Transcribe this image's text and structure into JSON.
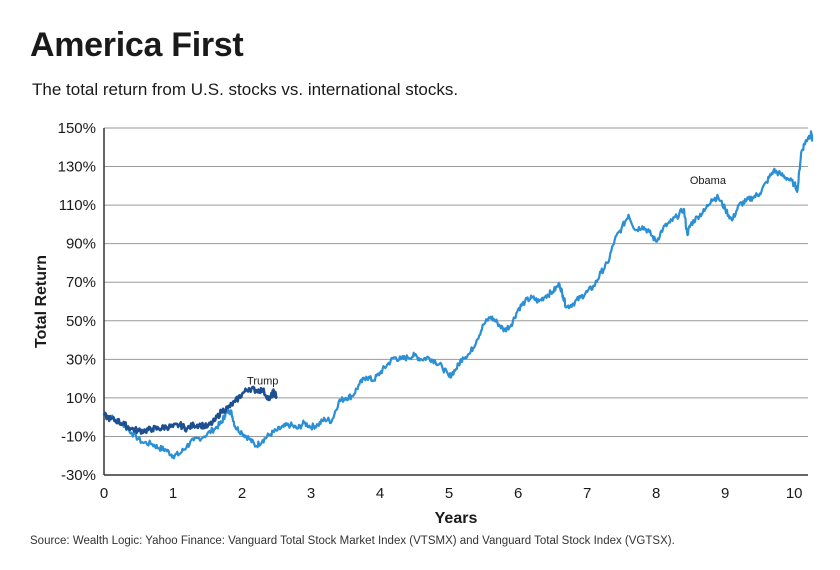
{
  "header": {
    "title": "America First",
    "subtitle": "The total return from U.S. stocks vs. international stocks."
  },
  "footer": {
    "source": "Source: Wealth Logic: Yahoo Finance: Vanguard Total Stock Market Index (VTSMX) and Vanguard Total Stock Index (VGTSX)."
  },
  "colors": {
    "obama": "#2b8fd4",
    "trump": "#1d4f91",
    "grid": "#9a9a9a",
    "axis": "#333333"
  },
  "chart_data": {
    "type": "line",
    "xlabel": "Years",
    "ylabel": "Total Return",
    "xlim": [
      0,
      10.2
    ],
    "ylim": [
      -30,
      150
    ],
    "x_ticks": [
      "0",
      "1",
      "2",
      "3",
      "4",
      "5",
      "6",
      "7",
      "8",
      "9",
      "10"
    ],
    "y_ticks": [
      "150%",
      "130%",
      "110%",
      "90%",
      "70%",
      "50%",
      "30%",
      "10%",
      "-10%",
      "-30%"
    ],
    "y_tick_values": [
      150,
      130,
      110,
      90,
      70,
      50,
      30,
      10,
      -10,
      -30
    ],
    "grid": "horizontal",
    "series": [
      {
        "name": "Obama",
        "color": "#2b8fd4",
        "label_at": [
          8.75,
          121
        ],
        "points": [
          [
            0,
            2
          ],
          [
            0.1,
            0
          ],
          [
            0.25,
            -3
          ],
          [
            0.4,
            -8
          ],
          [
            0.55,
            -13
          ],
          [
            0.7,
            -14
          ],
          [
            0.8,
            -16
          ],
          [
            0.9,
            -17
          ],
          [
            1.0,
            -20
          ],
          [
            1.1,
            -19
          ],
          [
            1.2,
            -15
          ],
          [
            1.3,
            -12
          ],
          [
            1.45,
            -10
          ],
          [
            1.6,
            -6
          ],
          [
            1.7,
            -3
          ],
          [
            1.75,
            1
          ],
          [
            1.8,
            4
          ],
          [
            1.85,
            2
          ],
          [
            1.9,
            -5
          ],
          [
            2.0,
            -8
          ],
          [
            2.1,
            -11
          ],
          [
            2.2,
            -15
          ],
          [
            2.3,
            -12
          ],
          [
            2.4,
            -9
          ],
          [
            2.5,
            -7
          ],
          [
            2.6,
            -5
          ],
          [
            2.7,
            -4
          ],
          [
            2.8,
            -6
          ],
          [
            2.9,
            -3
          ],
          [
            3.0,
            -5
          ],
          [
            3.1,
            -4
          ],
          [
            3.2,
            -1
          ],
          [
            3.3,
            -2
          ],
          [
            3.4,
            8
          ],
          [
            3.5,
            10
          ],
          [
            3.6,
            11
          ],
          [
            3.7,
            17
          ],
          [
            3.8,
            21
          ],
          [
            3.9,
            19
          ],
          [
            4.0,
            23
          ],
          [
            4.1,
            27
          ],
          [
            4.2,
            31
          ],
          [
            4.3,
            30
          ],
          [
            4.4,
            31
          ],
          [
            4.5,
            32
          ],
          [
            4.6,
            30
          ],
          [
            4.7,
            31
          ],
          [
            4.8,
            29
          ],
          [
            4.9,
            26
          ],
          [
            5.0,
            21
          ],
          [
            5.1,
            25
          ],
          [
            5.2,
            31
          ],
          [
            5.3,
            33
          ],
          [
            5.4,
            40
          ],
          [
            5.5,
            48
          ],
          [
            5.6,
            52
          ],
          [
            5.7,
            49
          ],
          [
            5.8,
            45
          ],
          [
            5.9,
            48
          ],
          [
            6.0,
            56
          ],
          [
            6.1,
            60
          ],
          [
            6.2,
            62
          ],
          [
            6.3,
            60
          ],
          [
            6.4,
            63
          ],
          [
            6.5,
            65
          ],
          [
            6.6,
            69
          ],
          [
            6.65,
            63
          ],
          [
            6.7,
            57
          ],
          [
            6.8,
            59
          ],
          [
            6.9,
            62
          ],
          [
            7.0,
            65
          ],
          [
            7.1,
            68
          ],
          [
            7.2,
            75
          ],
          [
            7.3,
            80
          ],
          [
            7.4,
            92
          ],
          [
            7.5,
            98
          ],
          [
            7.6,
            105
          ],
          [
            7.7,
            97
          ],
          [
            7.8,
            99
          ],
          [
            7.9,
            96
          ],
          [
            8.0,
            91
          ],
          [
            8.1,
            98
          ],
          [
            8.2,
            101
          ],
          [
            8.3,
            104
          ],
          [
            8.4,
            108
          ],
          [
            8.45,
            95
          ],
          [
            8.5,
            100
          ],
          [
            8.6,
            104
          ],
          [
            8.7,
            107
          ],
          [
            8.8,
            113
          ],
          [
            8.9,
            114
          ],
          [
            9.0,
            108
          ],
          [
            9.1,
            102
          ],
          [
            9.2,
            110
          ],
          [
            9.3,
            112
          ],
          [
            9.4,
            114
          ],
          [
            9.5,
            116
          ],
          [
            9.6,
            122
          ],
          [
            9.7,
            128
          ],
          [
            9.8,
            126
          ],
          [
            9.9,
            124
          ],
          [
            10.0,
            121
          ],
          [
            10.05,
            118
          ],
          [
            10.1,
            137
          ],
          [
            10.15,
            142
          ],
          [
            10.2,
            145
          ],
          [
            10.25,
            147
          ],
          [
            10.3,
            143
          ]
        ]
      },
      {
        "name": "Trump",
        "color": "#1d4f91",
        "label_at": [
          2.3,
          17
        ],
        "points": [
          [
            0,
            1
          ],
          [
            0.1,
            -1
          ],
          [
            0.2,
            -2
          ],
          [
            0.3,
            -4
          ],
          [
            0.4,
            -6
          ],
          [
            0.5,
            -7
          ],
          [
            0.6,
            -7
          ],
          [
            0.7,
            -6
          ],
          [
            0.8,
            -6
          ],
          [
            0.9,
            -5
          ],
          [
            1.0,
            -5
          ],
          [
            1.1,
            -4
          ],
          [
            1.2,
            -6
          ],
          [
            1.3,
            -4
          ],
          [
            1.4,
            -4
          ],
          [
            1.5,
            -5
          ],
          [
            1.6,
            -2
          ],
          [
            1.7,
            3
          ],
          [
            1.8,
            5
          ],
          [
            1.9,
            8
          ],
          [
            2.0,
            12
          ],
          [
            2.1,
            15
          ],
          [
            2.2,
            14
          ],
          [
            2.3,
            14
          ],
          [
            2.4,
            9
          ],
          [
            2.45,
            13
          ],
          [
            2.5,
            11
          ]
        ]
      }
    ]
  }
}
